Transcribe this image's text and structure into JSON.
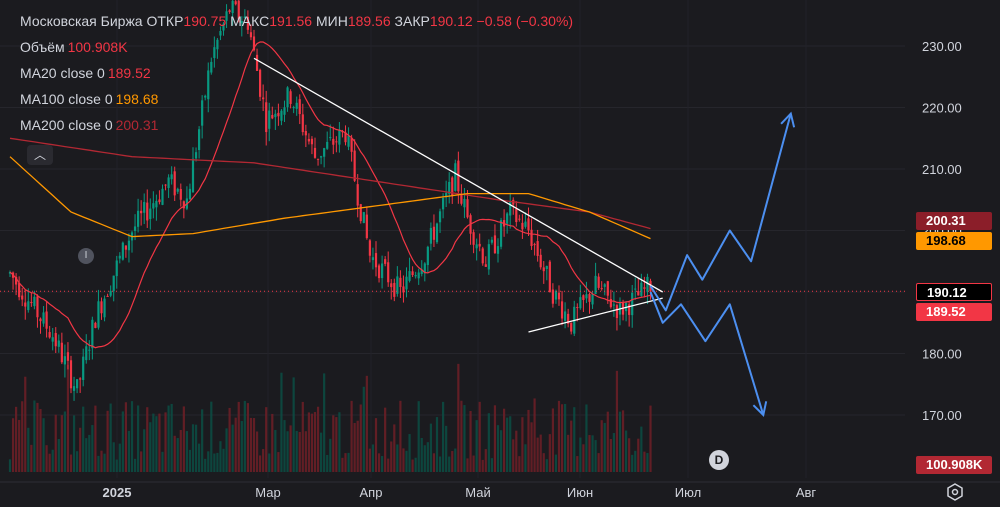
{
  "header": {
    "symbol": "Московская Биржа",
    "open_label": "ОТКР",
    "open": "190.75",
    "high_label": "МАКС",
    "high": "191.56",
    "low_label": "МИН",
    "low": "189.56",
    "close_label": "ЗАКР",
    "close": "190.12",
    "change": "−0.58 (−0.30%)"
  },
  "indicators": [
    {
      "label": "Объём",
      "value": "100.908K",
      "color": "#f23645"
    },
    {
      "label": "MA20 close 0",
      "value": "189.52",
      "color": "#f23645"
    },
    {
      "label": "MA100 close 0",
      "value": "198.68",
      "color": "#ff9800"
    },
    {
      "label": "MA200 close 0",
      "value": "200.31",
      "color": "#b22833"
    }
  ],
  "badges": {
    "ma200": "200.31",
    "ma100": "198.68",
    "close": "190.12",
    "ma20": "189.52",
    "volume": "100.908K"
  },
  "icons": [
    "chevron-up-icon",
    "info-icon",
    "dividend-icon",
    "gear-icon"
  ],
  "dividend_marker": "D",
  "info_marker": "I",
  "colors": {
    "up": "#089981",
    "down": "#f23645",
    "ma20": "#f23645",
    "ma100": "#ff9800",
    "ma200": "#b22833",
    "forecast": "#4c8ff0",
    "trendline": "#ffffff"
  },
  "chart_data": {
    "type": "candlestick",
    "y_axis": {
      "ticks": [
        "230.00",
        "220.00",
        "210.00",
        "200.00",
        "190.00",
        "180.00",
        "170.00"
      ],
      "tick_values": [
        230,
        220,
        210,
        200,
        190,
        180,
        170
      ],
      "ylim": [
        164.5,
        239.5
      ],
      "position": "right"
    },
    "x_axis": {
      "ticks": [
        "2025",
        "Мар",
        "Апр",
        "Май",
        "Июн",
        "Июл",
        "Авг"
      ]
    },
    "price_key_points": [
      {
        "t": 0,
        "v": 193
      },
      {
        "t": 14,
        "v": 183
      },
      {
        "t": 22,
        "v": 174
      },
      {
        "t": 28,
        "v": 186
      },
      {
        "t": 40,
        "v": 200
      },
      {
        "t": 52,
        "v": 208
      },
      {
        "t": 58,
        "v": 205
      },
      {
        "t": 66,
        "v": 228
      },
      {
        "t": 72,
        "v": 236
      },
      {
        "t": 78,
        "v": 234
      },
      {
        "t": 84,
        "v": 218
      },
      {
        "t": 92,
        "v": 222
      },
      {
        "t": 100,
        "v": 212
      },
      {
        "t": 110,
        "v": 216
      },
      {
        "t": 118,
        "v": 196
      },
      {
        "t": 128,
        "v": 190
      },
      {
        "t": 136,
        "v": 196
      },
      {
        "t": 146,
        "v": 209
      },
      {
        "t": 150,
        "v": 202
      },
      {
        "t": 156,
        "v": 195
      },
      {
        "t": 164,
        "v": 203
      },
      {
        "t": 170,
        "v": 200
      },
      {
        "t": 178,
        "v": 190
      },
      {
        "t": 184,
        "v": 185
      },
      {
        "t": 192,
        "v": 191
      },
      {
        "t": 200,
        "v": 187
      },
      {
        "t": 210,
        "v": 191
      }
    ],
    "ma100_key_points": [
      {
        "t": 0,
        "v": 212
      },
      {
        "t": 20,
        "v": 203
      },
      {
        "t": 40,
        "v": 199
      },
      {
        "t": 60,
        "v": 199.5
      },
      {
        "t": 90,
        "v": 202
      },
      {
        "t": 120,
        "v": 204
      },
      {
        "t": 150,
        "v": 206
      },
      {
        "t": 170,
        "v": 206
      },
      {
        "t": 190,
        "v": 203
      },
      {
        "t": 210,
        "v": 198.68
      }
    ],
    "ma200_key_points": [
      {
        "t": 0,
        "v": 215
      },
      {
        "t": 40,
        "v": 212
      },
      {
        "t": 80,
        "v": 211
      },
      {
        "t": 120,
        "v": 208
      },
      {
        "t": 160,
        "v": 205
      },
      {
        "t": 190,
        "v": 203
      },
      {
        "t": 210,
        "v": 200.31
      }
    ],
    "ma20_period": 20,
    "close_price": 190.12,
    "trendlines": [
      {
        "from": {
          "t": 80,
          "v": 228
        },
        "to": {
          "t": 214,
          "v": 190
        }
      },
      {
        "from": {
          "t": 170,
          "v": 183.5
        },
        "to": {
          "t": 214,
          "v": 189
        }
      }
    ],
    "forecast_up": [
      {
        "t": 210,
        "v": 191
      },
      {
        "t": 215,
        "v": 187
      },
      {
        "t": 222,
        "v": 196
      },
      {
        "t": 227,
        "v": 192
      },
      {
        "t": 236,
        "v": 200
      },
      {
        "t": 243,
        "v": 195
      },
      {
        "t": 256,
        "v": 219
      }
    ],
    "forecast_down": [
      {
        "t": 210,
        "v": 190
      },
      {
        "t": 214,
        "v": 185
      },
      {
        "t": 220,
        "v": 188
      },
      {
        "t": 228,
        "v": 182
      },
      {
        "t": 236,
        "v": 188
      },
      {
        "t": 247,
        "v": 170
      }
    ]
  }
}
